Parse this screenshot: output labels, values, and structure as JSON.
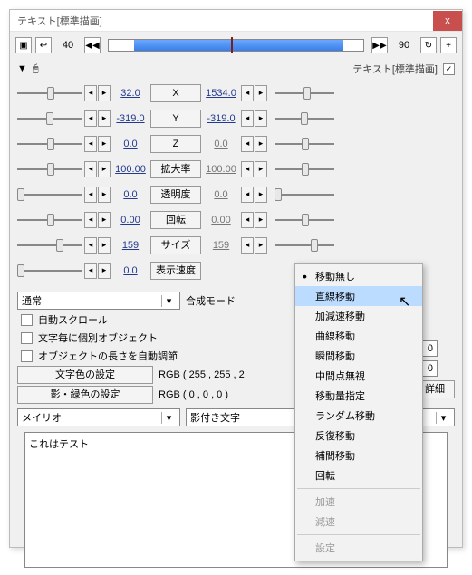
{
  "titlebar": {
    "text": "テキスト[標準描画]",
    "close": "x"
  },
  "toolbar": {
    "val_left": "40",
    "val_right": "90",
    "prev": "◀◀",
    "next": "▶▶"
  },
  "row2": {
    "label": "テキスト[標準描画]"
  },
  "params": [
    {
      "name": "X",
      "lval": "32.0",
      "rval": "1534.0",
      "lk": "46%",
      "rk": "48%",
      "rgray": false
    },
    {
      "name": "Y",
      "lval": "-319.0",
      "rval": "-319.0",
      "lk": "44%",
      "rk": "44%",
      "rgray": false
    },
    {
      "name": "Z",
      "lval": "0.0",
      "rval": "0.0",
      "lk": "46%",
      "rk": "46%",
      "rgray": true
    },
    {
      "name": "拡大率",
      "lval": "100.00",
      "rval": "100.00",
      "lk": "46%",
      "rk": "46%",
      "rgray": true
    },
    {
      "name": "透明度",
      "lval": "0.0",
      "rval": "0.0",
      "lk": "0%",
      "rk": "0%",
      "rgray": true
    },
    {
      "name": "回転",
      "lval": "0.00",
      "rval": "0.00",
      "lk": "46%",
      "rk": "46%",
      "rgray": true
    },
    {
      "name": "サイズ",
      "lval": "159",
      "rval": "159",
      "lk": "60%",
      "rk": "60%",
      "rgray": true
    },
    {
      "name": "表示速度",
      "lval": "0.0",
      "rval": "",
      "lk": "0%",
      "rk": "",
      "rgray": false
    }
  ],
  "bottom": {
    "blend_label": "合成モード",
    "blend_value": "通常",
    "cb1": "自動スクロール",
    "cb2": "文字毎に個別オブジェクト",
    "cb3": "オブジェクトの長さを自動調節",
    "btn_color": "文字色の設定",
    "rgb_color": "RGB ( 255 , 255 , 2",
    "btn_shadow": "影・緑色の設定",
    "rgb_shadow": "RGB ( 0 , 0 , 0 )",
    "font": "メイリオ",
    "decoration": "影付き文字",
    "memo": "これはテスト"
  },
  "right": {
    "num1": "0",
    "num2": "0",
    "detail": "詳細"
  },
  "menu": {
    "items": [
      {
        "label": "移動無し",
        "dot": true
      },
      {
        "label": "直線移動",
        "sel": true
      },
      {
        "label": "加減速移動"
      },
      {
        "label": "曲線移動"
      },
      {
        "label": "瞬間移動"
      },
      {
        "label": "中間点無視"
      },
      {
        "label": "移動量指定"
      },
      {
        "label": "ランダム移動"
      },
      {
        "label": "反復移動"
      },
      {
        "label": "補間移動"
      },
      {
        "label": "回転"
      },
      {
        "sep": true
      },
      {
        "label": "加速",
        "dis": true
      },
      {
        "label": "減速",
        "dis": true
      },
      {
        "sep": true
      },
      {
        "label": "設定",
        "dis": true
      }
    ]
  },
  "tri": "▼"
}
